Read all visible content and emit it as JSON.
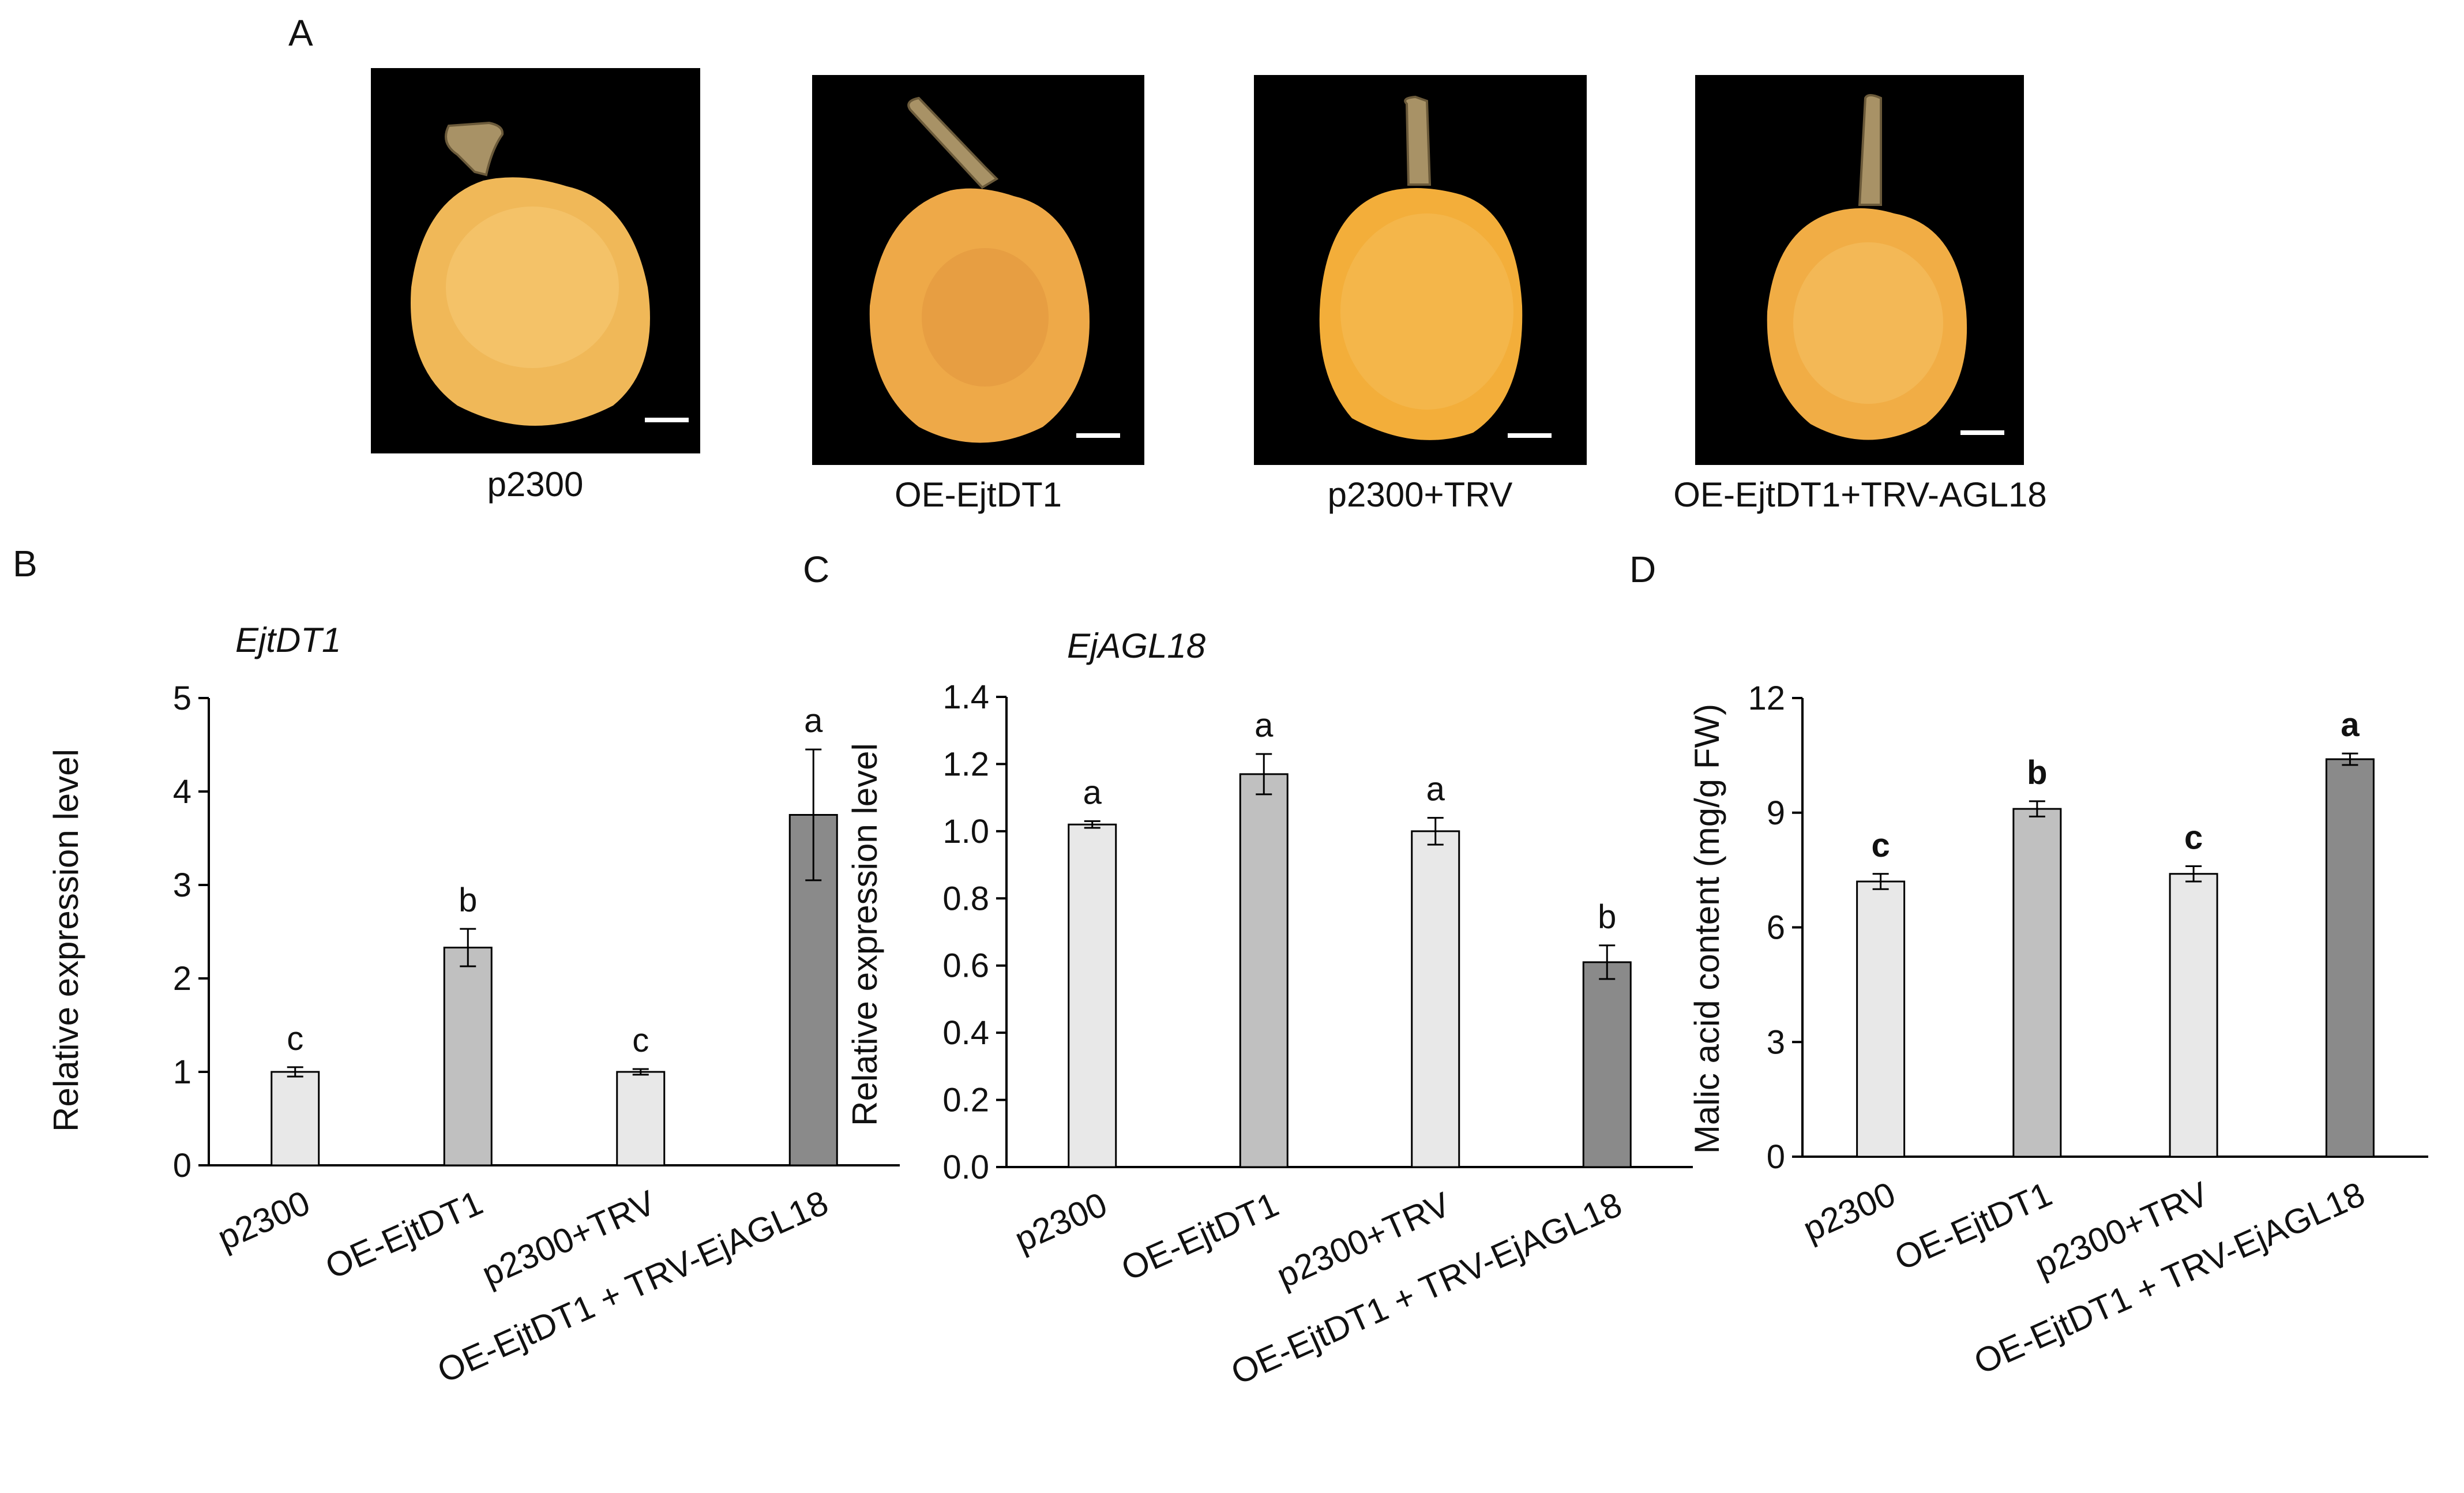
{
  "panel_letters": {
    "a": "A",
    "b": "B",
    "c": "C",
    "d": "D"
  },
  "photos": [
    {
      "label": "p2300",
      "fruit_color": "#f0b858"
    },
    {
      "label": "OE-EjtDT1",
      "fruit_color": "#eea948"
    },
    {
      "label": "p2300+TRV",
      "fruit_color": "#f3ae3a"
    },
    {
      "label": "OE-EjtDT1+TRV-AGL18",
      "fruit_color": "#f1ad45"
    }
  ],
  "colors": {
    "light": "#e8e8e8",
    "mid": "#c0c0c0",
    "dark": "#8a8a8a",
    "axis": "#000000",
    "background": "#ffffff"
  },
  "chart_data": [
    {
      "type": "bar",
      "title": "EjtDT1",
      "ylabel": "Relative expression level",
      "xlabel": "",
      "ylim": [
        0,
        5
      ],
      "yticks": [
        "0",
        "1",
        "2",
        "3",
        "4",
        "5"
      ],
      "categories": [
        "p2300",
        "OE-EjtDT1",
        "p2300+TRV",
        "OE-EjtDT1 + TRV-EjAGL18"
      ],
      "values": [
        1.0,
        2.33,
        1.0,
        3.75
      ],
      "errors": [
        0.05,
        0.2,
        0.03,
        0.7
      ],
      "letters": [
        "c",
        "b",
        "c",
        "a"
      ],
      "bar_tones": [
        "light",
        "mid",
        "light",
        "dark"
      ]
    },
    {
      "type": "bar",
      "title": "EjAGL18",
      "ylabel": "Relative expression level",
      "xlabel": "",
      "ylim": [
        0,
        1.4
      ],
      "yticks": [
        "0.0",
        "0.2",
        "0.4",
        "0.6",
        "0.8",
        "1.0",
        "1.2",
        "1.4"
      ],
      "categories": [
        "p2300",
        "OE-EjtDT1",
        "p2300+TRV",
        "OE-EjtDT1 + TRV-EjAGL18"
      ],
      "values": [
        1.02,
        1.17,
        1.0,
        0.61
      ],
      "errors": [
        0.01,
        0.06,
        0.04,
        0.05
      ],
      "letters": [
        "a",
        "a",
        "a",
        "b"
      ],
      "bar_tones": [
        "light",
        "mid",
        "light",
        "dark"
      ]
    },
    {
      "type": "bar",
      "title": "",
      "ylabel": "Malic acid content (mg/g FW)",
      "xlabel": "",
      "ylim": [
        0,
        12
      ],
      "yticks": [
        "0",
        "3",
        "6",
        "9",
        "12"
      ],
      "categories": [
        "p2300",
        "OE-EjtDT1",
        "p2300+TRV",
        "OE-EjtDT1 + TRV-EjAGL18"
      ],
      "values": [
        7.2,
        9.1,
        7.4,
        10.4
      ],
      "errors": [
        0.2,
        0.2,
        0.2,
        0.15
      ],
      "letters": [
        "c",
        "b",
        "c",
        "a"
      ],
      "bar_tones": [
        "light",
        "mid",
        "light",
        "dark"
      ]
    }
  ]
}
